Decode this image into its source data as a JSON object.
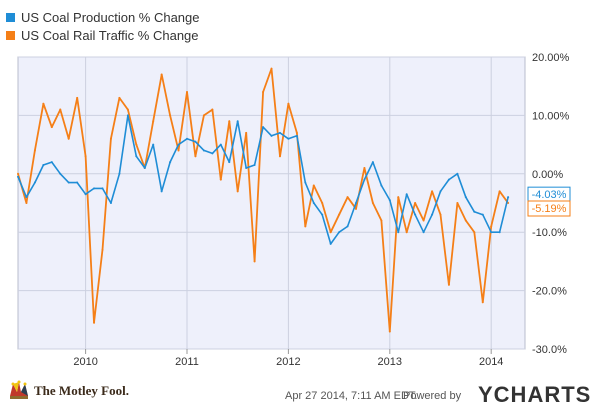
{
  "legend": [
    {
      "label": "US Coal Production % Change",
      "color": "#1f8dd6"
    },
    {
      "label": "US Coal Rail Traffic % Change",
      "color": "#f57f17"
    }
  ],
  "footer": {
    "brand": "The Motley Fool.",
    "timestamp": "Apr 27 2014, 7:11 AM EDT.",
    "powered_by": "Powered by",
    "ycharts": "YCHARTS"
  },
  "chart_data": {
    "type": "line",
    "title": "",
    "xlabel": "",
    "ylabel": "",
    "x_ticks": [
      "2010",
      "2011",
      "2012",
      "2013",
      "2014"
    ],
    "y_ticks": [
      "20.00%",
      "10.00%",
      "0.00%",
      "-10.0%",
      "-20.0%",
      "-30.0%"
    ],
    "x_range": [
      "2009-05",
      "2014-05"
    ],
    "ylim": [
      -30,
      20
    ],
    "grid": true,
    "legend_position": "top-left",
    "end_labels": [
      "-4.03%",
      "-5.19%"
    ],
    "series": [
      {
        "name": "US Coal Production % Change",
        "color": "#1f8dd6",
        "points": [
          [
            "2009-05",
            -0.5
          ],
          [
            "2009-06",
            -4
          ],
          [
            "2009-07",
            -1.5
          ],
          [
            "2009-08",
            1.5
          ],
          [
            "2009-09",
            2
          ],
          [
            "2009-10",
            0
          ],
          [
            "2009-11",
            -1.5
          ],
          [
            "2009-12",
            -1.5
          ],
          [
            "2010-01",
            -3.5
          ],
          [
            "2010-02",
            -2.5
          ],
          [
            "2010-03",
            -2.5
          ],
          [
            "2010-04",
            -5
          ],
          [
            "2010-05",
            0
          ],
          [
            "2010-06",
            10
          ],
          [
            "2010-07",
            3
          ],
          [
            "2010-08",
            1
          ],
          [
            "2010-09",
            5
          ],
          [
            "2010-10",
            -3
          ],
          [
            "2010-11",
            2
          ],
          [
            "2010-12",
            5
          ],
          [
            "2011-01",
            6
          ],
          [
            "2011-02",
            5.5
          ],
          [
            "2011-03",
            4
          ],
          [
            "2011-04",
            3.5
          ],
          [
            "2011-05",
            5
          ],
          [
            "2011-06",
            2
          ],
          [
            "2011-07",
            9
          ],
          [
            "2011-08",
            1
          ],
          [
            "2011-09",
            1.5
          ],
          [
            "2011-10",
            8
          ],
          [
            "2011-11",
            6.5
          ],
          [
            "2011-12",
            7
          ],
          [
            "2012-01",
            6
          ],
          [
            "2012-02",
            6.5
          ],
          [
            "2012-03",
            -1.5
          ],
          [
            "2012-04",
            -5
          ],
          [
            "2012-05",
            -7
          ],
          [
            "2012-06",
            -12
          ],
          [
            "2012-07",
            -10
          ],
          [
            "2012-08",
            -9
          ],
          [
            "2012-09",
            -5
          ],
          [
            "2012-10",
            -1
          ],
          [
            "2012-11",
            2
          ],
          [
            "2012-12",
            -2
          ],
          [
            "2013-01",
            -4.5
          ],
          [
            "2013-02",
            -10
          ],
          [
            "2013-03",
            -3.5
          ],
          [
            "2013-04",
            -7
          ],
          [
            "2013-05",
            -10
          ],
          [
            "2013-06",
            -7
          ],
          [
            "2013-07",
            -3
          ],
          [
            "2013-08",
            -1
          ],
          [
            "2013-09",
            0
          ],
          [
            "2013-10",
            -4
          ],
          [
            "2013-11",
            -6.5
          ],
          [
            "2013-12",
            -7
          ],
          [
            "2014-01",
            -10
          ],
          [
            "2014-02",
            -10
          ],
          [
            "2014-03",
            -4
          ]
        ]
      },
      {
        "name": "US Coal Rail Traffic % Change",
        "color": "#f57f17",
        "points": [
          [
            "2009-05",
            0
          ],
          [
            "2009-06",
            -5
          ],
          [
            "2009-07",
            4
          ],
          [
            "2009-08",
            12
          ],
          [
            "2009-09",
            8
          ],
          [
            "2009-10",
            11
          ],
          [
            "2009-11",
            6
          ],
          [
            "2009-12",
            13
          ],
          [
            "2010-01",
            3
          ],
          [
            "2010-02",
            -25.5
          ],
          [
            "2010-03",
            -13
          ],
          [
            "2010-04",
            6
          ],
          [
            "2010-05",
            13
          ],
          [
            "2010-06",
            11
          ],
          [
            "2010-07",
            5
          ],
          [
            "2010-08",
            1
          ],
          [
            "2010-09",
            9
          ],
          [
            "2010-10",
            17
          ],
          [
            "2010-11",
            10
          ],
          [
            "2010-12",
            4
          ],
          [
            "2011-01",
            14
          ],
          [
            "2011-02",
            3
          ],
          [
            "2011-03",
            10
          ],
          [
            "2011-04",
            11
          ],
          [
            "2011-05",
            -1
          ],
          [
            "2011-06",
            9
          ],
          [
            "2011-07",
            -3
          ],
          [
            "2011-08",
            7
          ],
          [
            "2011-09",
            -15
          ],
          [
            "2011-10",
            14
          ],
          [
            "2011-11",
            18
          ],
          [
            "2011-12",
            3
          ],
          [
            "2012-01",
            12
          ],
          [
            "2012-02",
            7
          ],
          [
            "2012-03",
            -9
          ],
          [
            "2012-04",
            -2
          ],
          [
            "2012-05",
            -5
          ],
          [
            "2012-06",
            -10
          ],
          [
            "2012-07",
            -7
          ],
          [
            "2012-08",
            -4
          ],
          [
            "2012-09",
            -6
          ],
          [
            "2012-10",
            1
          ],
          [
            "2012-11",
            -5
          ],
          [
            "2012-12",
            -8
          ],
          [
            "2013-01",
            -27
          ],
          [
            "2013-02",
            -4
          ],
          [
            "2013-03",
            -10
          ],
          [
            "2013-04",
            -5
          ],
          [
            "2013-05",
            -8
          ],
          [
            "2013-06",
            -3
          ],
          [
            "2013-07",
            -7
          ],
          [
            "2013-08",
            -19
          ],
          [
            "2013-09",
            -5
          ],
          [
            "2013-10",
            -8
          ],
          [
            "2013-11",
            -10
          ],
          [
            "2013-12",
            -22
          ],
          [
            "2014-01",
            -9
          ],
          [
            "2014-02",
            -3
          ],
          [
            "2014-03",
            -5
          ]
        ]
      }
    ]
  }
}
